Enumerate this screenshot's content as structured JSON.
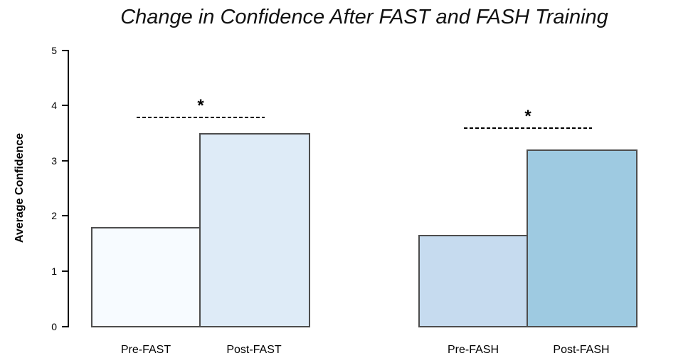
{
  "title": "Change in Confidence After FAST and FASH Training",
  "chart_data": {
    "type": "bar",
    "title": "Change in Confidence After FAST and FASH Training",
    "xlabel": "",
    "ylabel": "Average Confidence",
    "ylim": [
      0,
      5
    ],
    "yticks": [
      "0",
      "1",
      "2",
      "3",
      "4",
      "5"
    ],
    "grid": false,
    "legend": false,
    "categories": [
      "Pre-FAST",
      "Post-FAST",
      "Pre-FASH",
      "Post-FASH"
    ],
    "values": [
      1.8,
      3.5,
      1.65,
      3.2
    ],
    "bar_colors": [
      "#F7FBFF",
      "#DEEBF7",
      "#C6DBEF",
      "#9ECAE1"
    ],
    "bar_border_color": "#4d4d4d",
    "groups": [
      {
        "name": "FAST",
        "bars": [
          {
            "label": "Pre-FAST",
            "value": 1.8,
            "color": "#F7FBFF"
          },
          {
            "label": "Post-FAST",
            "value": 3.5,
            "color": "#DEEBF7"
          }
        ],
        "significance": {
          "label": "*",
          "line_y": 3.8,
          "line_style": "dashed"
        }
      },
      {
        "name": "FASH",
        "bars": [
          {
            "label": "Pre-FASH",
            "value": 1.65,
            "color": "#C6DBEF"
          },
          {
            "label": "Post-FASH",
            "value": 3.2,
            "color": "#9ECAE1"
          }
        ],
        "significance": {
          "label": "*",
          "line_y": 3.6,
          "line_style": "dashed"
        }
      }
    ]
  }
}
